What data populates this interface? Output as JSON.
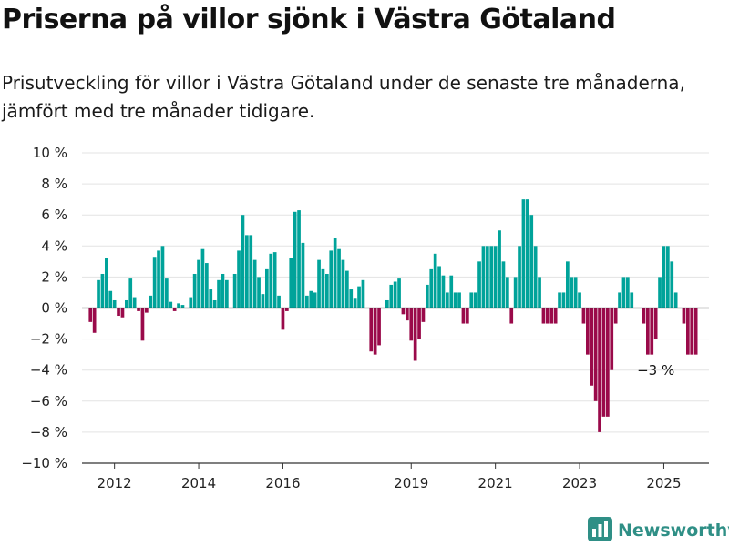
{
  "title": "Priserna på villor sjönk i Västra Götaland",
  "subtitle": "Prisutveckling för villor i Västra Götaland under de senaste tre månaderna, jämfört med tre månader tidigare.",
  "brand": {
    "name": "Newsworthy",
    "logo_icon": "bar-chart-logo-icon",
    "color": "#2f8f86"
  },
  "colors": {
    "positive": "#00a39a",
    "negative": "#9a0a4a",
    "grid": "#e3e3e3",
    "zero_line": "#333333"
  },
  "chart_data": {
    "type": "bar",
    "y_unit": "%",
    "ylim": [
      -10,
      10
    ],
    "y_ticks": [
      10,
      8,
      6,
      4,
      2,
      0,
      -2,
      -4,
      -6,
      -8,
      -10
    ],
    "y_tick_labels": [
      "10 %",
      "8 %",
      "6 %",
      "4 %",
      "2 %",
      "0 %",
      "−2 %",
      "−4 %",
      "−6 %",
      "−8 %",
      "−10 %"
    ],
    "x_tick_labels": [
      "2012",
      "2014",
      "2016",
      "2019",
      "2021",
      "2023",
      "2025"
    ],
    "x_tick_positions": [
      7,
      28,
      49,
      81,
      102,
      123,
      144
    ],
    "grid": "horizontal",
    "annotation": {
      "text": "−3 %",
      "bar_index": 142
    },
    "values": [
      0,
      -0.9,
      -1.6,
      1.8,
      2.2,
      3.2,
      1.1,
      0.5,
      -0.5,
      -0.6,
      0.5,
      1.9,
      0.7,
      -0.2,
      -2.1,
      -0.3,
      0.8,
      3.3,
      3.7,
      4.0,
      1.9,
      0.4,
      -0.2,
      0.3,
      0.2,
      0,
      0.7,
      2.2,
      3.1,
      3.8,
      2.9,
      1.2,
      0.5,
      1.8,
      2.2,
      1.8,
      0,
      2.2,
      3.7,
      6.0,
      4.7,
      4.7,
      3.1,
      2.0,
      0.9,
      2.5,
      3.5,
      3.6,
      0.8,
      -1.4,
      -0.2,
      3.2,
      6.2,
      6.3,
      4.2,
      0.8,
      1.1,
      1.0,
      3.1,
      2.5,
      2.2,
      3.7,
      4.5,
      3.8,
      3.1,
      2.4,
      1.2,
      0.6,
      1.4,
      1.8,
      0,
      -2.8,
      -3.0,
      -2.4,
      0,
      0.5,
      1.5,
      1.7,
      1.9,
      -0.4,
      -0.8,
      -2.1,
      -3.4,
      -2.0,
      -0.9,
      1.5,
      2.5,
      3.5,
      2.7,
      2.1,
      1.0,
      2.1,
      1.0,
      1.0,
      -1.0,
      -1.0,
      1.0,
      1.0,
      3.0,
      4.0,
      4.0,
      4.0,
      4.0,
      5.0,
      3.0,
      2.0,
      -1.0,
      2.0,
      4.0,
      7.0,
      7.0,
      6.0,
      4.0,
      2.0,
      -1.0,
      -1.0,
      -1.0,
      -1.0,
      1.0,
      1.0,
      3.0,
      2.0,
      2.0,
      1.0,
      -1.0,
      -3.0,
      -5.0,
      -6.0,
      -8.0,
      -7.0,
      -7.0,
      -4.0,
      -1.0,
      1.0,
      2.0,
      2.0,
      1.0,
      0,
      0,
      -1.0,
      -3.0,
      -3.0,
      -2.0,
      2.0,
      4.0,
      4.0,
      3.0,
      1.0,
      0,
      -1.0,
      -3.0,
      -3.0,
      -3.0
    ]
  }
}
